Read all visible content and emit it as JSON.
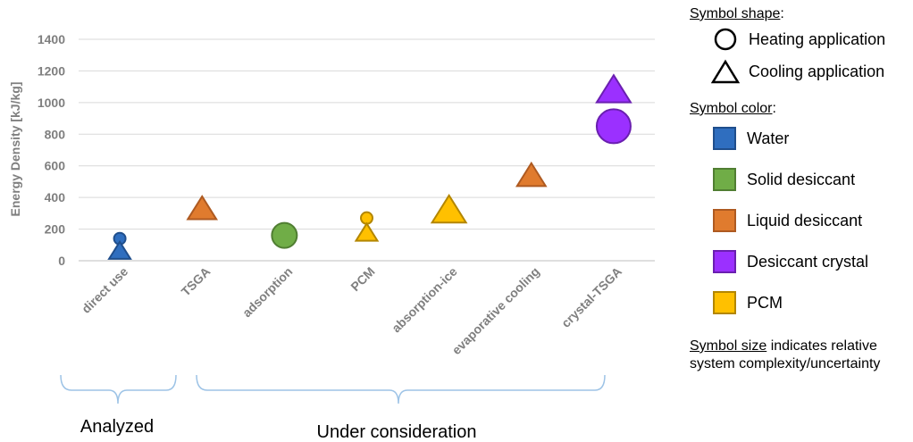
{
  "chart_data": {
    "type": "scatter",
    "ylabel": "Energy Density [kJ/kg]",
    "ylim": [
      0,
      1400
    ],
    "yticks": [
      0,
      200,
      400,
      600,
      800,
      1000,
      1200,
      1400
    ],
    "grid": true,
    "categories": [
      "direct use",
      "TSGA",
      "adsorption",
      "PCM",
      "absorption-ice",
      "evaporative cooling",
      "crystal-TSGA"
    ],
    "points": [
      {
        "category": "direct use",
        "y": 140,
        "shape": "circle",
        "color_key": "water",
        "size": "small"
      },
      {
        "category": "direct use",
        "y": 55,
        "shape": "triangle",
        "color_key": "water",
        "size": "small"
      },
      {
        "category": "TSGA",
        "y": 320,
        "shape": "triangle",
        "color_key": "liquid",
        "size": "medium"
      },
      {
        "category": "adsorption",
        "y": 160,
        "shape": "circle",
        "color_key": "solid",
        "size": "large"
      },
      {
        "category": "PCM",
        "y": 270,
        "shape": "circle",
        "color_key": "pcm",
        "size": "small"
      },
      {
        "category": "PCM",
        "y": 170,
        "shape": "triangle",
        "color_key": "pcm",
        "size": "small"
      },
      {
        "category": "absorption-ice",
        "y": 310,
        "shape": "triangle",
        "color_key": "pcm",
        "size": "large"
      },
      {
        "category": "evaporative cooling",
        "y": 530,
        "shape": "triangle",
        "color_key": "liquid",
        "size": "medium"
      },
      {
        "category": "crystal-TSGA",
        "y": 1070,
        "shape": "triangle",
        "color_key": "crystal",
        "size": "large"
      },
      {
        "category": "crystal-TSGA",
        "y": 850,
        "shape": "circle",
        "color_key": "crystal",
        "size": "xlarge"
      }
    ]
  },
  "colors": {
    "water": {
      "fill": "#2f6ebf",
      "stroke": "#1f4e8c"
    },
    "solid": {
      "fill": "#70ad47",
      "stroke": "#507e32"
    },
    "liquid": {
      "fill": "#e07b2e",
      "stroke": "#ae5a21"
    },
    "crystal": {
      "fill": "#9b30ff",
      "stroke": "#6a1fb0"
    },
    "pcm": {
      "fill": "#ffc000",
      "stroke": "#b38600"
    },
    "grid": "#d9d9d9",
    "axis": "#bfbfbf",
    "bracket": "#9dc3e6"
  },
  "brackets": [
    {
      "label": "Analyzed"
    },
    {
      "label": "Under consideration"
    }
  ],
  "legend": {
    "shape_header": "Symbol shape",
    "shape_header_suffix": ":",
    "shapes": [
      {
        "icon": "circle-icon",
        "label": "Heating application"
      },
      {
        "icon": "triangle-icon",
        "label": "Cooling application"
      }
    ],
    "color_header": "Symbol color",
    "color_header_suffix": ":",
    "colors": [
      {
        "key": "water",
        "label": "Water"
      },
      {
        "key": "solid",
        "label": "Solid desiccant"
      },
      {
        "key": "liquid",
        "label": "Liquid desiccant"
      },
      {
        "key": "crystal",
        "label": "Desiccant crystal"
      },
      {
        "key": "pcm",
        "label": "PCM"
      }
    ],
    "size_header": "Symbol size",
    "size_text_1": " indicates relative",
    "size_text_2": "system complexity/uncertainty"
  }
}
